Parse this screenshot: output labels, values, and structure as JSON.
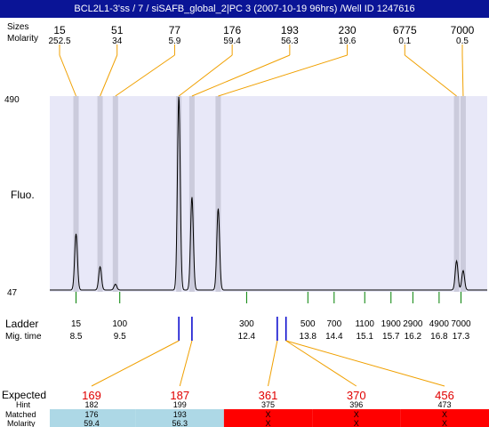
{
  "header": {
    "title": "BCL2L1-3'ss / 7 / siSAFB_global_2|PC 3 (2007-10-19 96hrs) /Well ID 1247616"
  },
  "labels": {
    "sizes": "Sizes",
    "molarity": "Molarity",
    "fluo": "Fluo.",
    "ladder": "Ladder",
    "mig_time": "Mig. time",
    "expected": "Expected",
    "hint": "Hint",
    "matched": "Matched",
    "molarity_bottom": "Molarity"
  },
  "chart_data": {
    "type": "line",
    "title": "",
    "ylabel": "Fluo.",
    "y_ticks": [
      "490",
      "47"
    ],
    "x_axis": "migration time",
    "x_range": [
      7.9,
      17.9
    ],
    "peaks": [
      {
        "size": "15",
        "molarity": "252.5",
        "time": 8.5,
        "height": 0.29
      },
      {
        "size": "51",
        "molarity": "34",
        "time": 9.05,
        "height": 0.12
      },
      {
        "size": "77",
        "molarity": "5.9",
        "time": 9.4,
        "height": 0.03
      },
      {
        "size": "176",
        "molarity": "59.4",
        "time": 10.85,
        "height": 1.0
      },
      {
        "size": "193",
        "molarity": "56.3",
        "time": 11.15,
        "height": 0.48
      },
      {
        "size": "230",
        "molarity": "19.6",
        "time": 11.75,
        "height": 0.42
      },
      {
        "size": "6775",
        "molarity": "0.1",
        "time": 17.2,
        "height": 0.15
      },
      {
        "size": "7000",
        "molarity": "0.5",
        "time": 17.35,
        "height": 0.1
      }
    ],
    "ladder": [
      {
        "size": "15",
        "time": "8.5",
        "t": 8.5
      },
      {
        "size": "100",
        "time": "9.5",
        "t": 9.5
      },
      {
        "size": "300",
        "time": "12.4",
        "t": 12.4
      },
      {
        "size": "500",
        "time": "13.8",
        "t": 13.8
      },
      {
        "size": "700",
        "time": "14.4",
        "t": 14.4
      },
      {
        "size": "1100",
        "time": "15.1",
        "t": 15.1
      },
      {
        "size": "1900",
        "time": "15.7",
        "t": 15.7
      },
      {
        "size": "2900",
        "time": "16.2",
        "t": 16.2
      },
      {
        "size": "4900",
        "time": "16.8",
        "t": 16.8
      },
      {
        "size": "7000",
        "time": "17.3",
        "t": 17.3
      }
    ],
    "hint_marks": [
      10.85,
      11.15,
      13.1,
      13.3
    ],
    "expected": [
      {
        "size": "169",
        "hint": "182",
        "matched": "176",
        "molarity": "59.4",
        "mark_t": 10.85,
        "status": "matched"
      },
      {
        "size": "187",
        "hint": "199",
        "matched": "193",
        "molarity": "56.3",
        "mark_t": 11.15,
        "status": "matched"
      },
      {
        "size": "361",
        "hint": "375",
        "matched": "X",
        "molarity": "X",
        "mark_t": 13.1,
        "status": "missing"
      },
      {
        "size": "370",
        "hint": "396",
        "matched": "X",
        "molarity": "X",
        "mark_t": 13.3,
        "status": "missing"
      },
      {
        "size": "456",
        "hint": "473",
        "matched": "X",
        "molarity": "X",
        "mark_t": 13.3,
        "status": "missing"
      }
    ],
    "colors": {
      "plot_bg": "#e8e8f8",
      "peak_band": "#c8c8d8",
      "leader": "#f0a000",
      "ladder_tick": "#008000",
      "hint_mark": "#0000cc",
      "expected_text": "#e00000",
      "matched_bg": "#add8e6",
      "missing_bg": "#ff0000"
    }
  }
}
